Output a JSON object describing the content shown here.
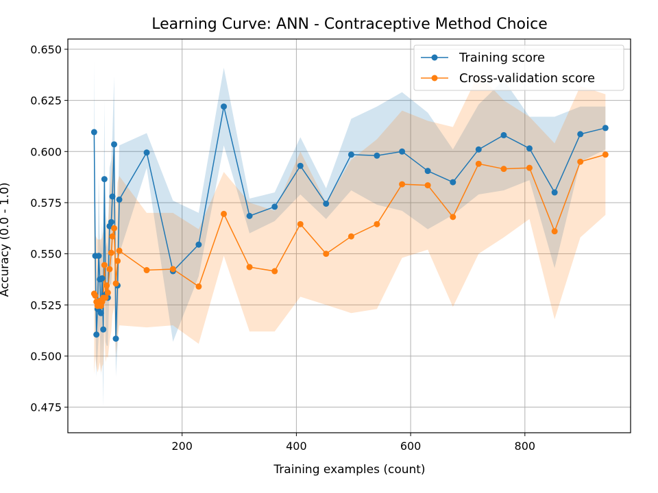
{
  "chart_data": {
    "type": "line",
    "title": "Learning Curve: ANN - Contraceptive Method Choice",
    "xlabel": "Training examples (count)",
    "ylabel": "Accuracy (0.0 - 1.0)",
    "xlim": [
      0,
      985
    ],
    "ylim": [
      0.4625,
      0.655
    ],
    "xticks": [
      200,
      400,
      600,
      800
    ],
    "yticks": [
      0.475,
      0.5,
      0.525,
      0.55,
      0.575,
      0.6,
      0.625,
      0.65
    ],
    "grid": true,
    "legend_position": "top-right",
    "series": [
      {
        "name": "Training score",
        "color": "#1f77b4",
        "points": [
          [
            46,
            0.6095
          ],
          [
            48,
            0.549
          ],
          [
            50,
            0.5105
          ],
          [
            52,
            0.523
          ],
          [
            54,
            0.549
          ],
          [
            56,
            0.5375
          ],
          [
            58,
            0.521
          ],
          [
            60,
            0.538
          ],
          [
            62,
            0.513
          ],
          [
            64,
            0.5865
          ],
          [
            66,
            0.53
          ],
          [
            68,
            0.5305
          ],
          [
            70,
            0.5285
          ],
          [
            73,
            0.5635
          ],
          [
            76,
            0.5655
          ],
          [
            78,
            0.578
          ],
          [
            81,
            0.6035
          ],
          [
            84,
            0.5085
          ],
          [
            87,
            0.5345
          ],
          [
            90,
            0.5765
          ],
          [
            138,
            0.5995
          ],
          [
            184,
            0.5415
          ],
          [
            229,
            0.5545
          ],
          [
            273,
            0.622
          ],
          [
            318,
            0.5685
          ],
          [
            362,
            0.573
          ],
          [
            407,
            0.593
          ],
          [
            452,
            0.5745
          ],
          [
            496,
            0.5985
          ],
          [
            541,
            0.598
          ],
          [
            585,
            0.6
          ],
          [
            630,
            0.5905
          ],
          [
            674,
            0.585
          ],
          [
            719,
            0.601
          ],
          [
            763,
            0.608
          ],
          [
            808,
            0.6015
          ],
          [
            852,
            0.58
          ],
          [
            897,
            0.6085
          ],
          [
            941,
            0.6115
          ]
        ],
        "band": [
          [
            46,
            0.575,
            0.644
          ],
          [
            48,
            0.52,
            0.578
          ],
          [
            50,
            0.49,
            0.531
          ],
          [
            52,
            0.5,
            0.546
          ],
          [
            54,
            0.51,
            0.588
          ],
          [
            56,
            0.515,
            0.56
          ],
          [
            58,
            0.49,
            0.552
          ],
          [
            60,
            0.51,
            0.566
          ],
          [
            62,
            0.475,
            0.551
          ],
          [
            64,
            0.548,
            0.625
          ],
          [
            66,
            0.507,
            0.553
          ],
          [
            68,
            0.505,
            0.556
          ],
          [
            70,
            0.505,
            0.552
          ],
          [
            73,
            0.535,
            0.592
          ],
          [
            76,
            0.535,
            0.596
          ],
          [
            78,
            0.548,
            0.608
          ],
          [
            81,
            0.57,
            0.637
          ],
          [
            84,
            0.49,
            0.527
          ],
          [
            87,
            0.505,
            0.564
          ],
          [
            90,
            0.55,
            0.603
          ],
          [
            138,
            0.592,
            0.609
          ],
          [
            184,
            0.507,
            0.576
          ],
          [
            229,
            0.539,
            0.57
          ],
          [
            273,
            0.603,
            0.641
          ],
          [
            318,
            0.56,
            0.577
          ],
          [
            362,
            0.566,
            0.58
          ],
          [
            407,
            0.579,
            0.607
          ],
          [
            452,
            0.567,
            0.582
          ],
          [
            496,
            0.581,
            0.616
          ],
          [
            541,
            0.574,
            0.622
          ],
          [
            585,
            0.571,
            0.629
          ],
          [
            630,
            0.562,
            0.619
          ],
          [
            674,
            0.569,
            0.601
          ],
          [
            719,
            0.579,
            0.623
          ],
          [
            763,
            0.581,
            0.635
          ],
          [
            808,
            0.586,
            0.617
          ],
          [
            852,
            0.543,
            0.617
          ],
          [
            897,
            0.595,
            0.622
          ],
          [
            941,
            0.601,
            0.622
          ]
        ]
      },
      {
        "name": "Cross-validation score",
        "color": "#ff7f0e",
        "points": [
          [
            46,
            0.5305
          ],
          [
            48,
            0.5295
          ],
          [
            50,
            0.5265
          ],
          [
            52,
            0.5245
          ],
          [
            54,
            0.5255
          ],
          [
            56,
            0.527
          ],
          [
            58,
            0.5245
          ],
          [
            60,
            0.5265
          ],
          [
            62,
            0.5285
          ],
          [
            64,
            0.5445
          ],
          [
            66,
            0.5285
          ],
          [
            68,
            0.5345
          ],
          [
            70,
            0.531
          ],
          [
            73,
            0.5425
          ],
          [
            76,
            0.5505
          ],
          [
            78,
            0.5585
          ],
          [
            81,
            0.5625
          ],
          [
            84,
            0.5355
          ],
          [
            87,
            0.5465
          ],
          [
            90,
            0.5515
          ],
          [
            138,
            0.542
          ],
          [
            184,
            0.5425
          ],
          [
            229,
            0.534
          ],
          [
            273,
            0.5695
          ],
          [
            318,
            0.5435
          ],
          [
            362,
            0.5415
          ],
          [
            407,
            0.5645
          ],
          [
            452,
            0.55
          ],
          [
            496,
            0.5585
          ],
          [
            541,
            0.5645
          ],
          [
            585,
            0.584
          ],
          [
            630,
            0.5835
          ],
          [
            674,
            0.568
          ],
          [
            719,
            0.594
          ],
          [
            763,
            0.5915
          ],
          [
            808,
            0.592
          ],
          [
            852,
            0.561
          ],
          [
            897,
            0.595
          ],
          [
            941,
            0.5985
          ]
        ],
        "band": [
          [
            46,
            0.491,
            0.57
          ],
          [
            48,
            0.5,
            0.559
          ],
          [
            50,
            0.495,
            0.558
          ],
          [
            52,
            0.492,
            0.557
          ],
          [
            54,
            0.494,
            0.557
          ],
          [
            56,
            0.497,
            0.557
          ],
          [
            58,
            0.492,
            0.557
          ],
          [
            60,
            0.495,
            0.558
          ],
          [
            62,
            0.496,
            0.561
          ],
          [
            64,
            0.51,
            0.579
          ],
          [
            66,
            0.497,
            0.56
          ],
          [
            68,
            0.5,
            0.569
          ],
          [
            70,
            0.499,
            0.563
          ],
          [
            73,
            0.507,
            0.578
          ],
          [
            76,
            0.512,
            0.589
          ],
          [
            78,
            0.52,
            0.597
          ],
          [
            81,
            0.524,
            0.601
          ],
          [
            84,
            0.5,
            0.571
          ],
          [
            87,
            0.508,
            0.585
          ],
          [
            90,
            0.515,
            0.588
          ],
          [
            138,
            0.514,
            0.57
          ],
          [
            184,
            0.515,
            0.57
          ],
          [
            229,
            0.506,
            0.562
          ],
          [
            273,
            0.549,
            0.59
          ],
          [
            318,
            0.512,
            0.575
          ],
          [
            362,
            0.512,
            0.571
          ],
          [
            407,
            0.529,
            0.6
          ],
          [
            452,
            0.525,
            0.575
          ],
          [
            496,
            0.521,
            0.596
          ],
          [
            541,
            0.523,
            0.606
          ],
          [
            585,
            0.548,
            0.62
          ],
          [
            630,
            0.552,
            0.615
          ],
          [
            674,
            0.524,
            0.612
          ],
          [
            719,
            0.55,
            0.638
          ],
          [
            763,
            0.558,
            0.625
          ],
          [
            808,
            0.567,
            0.617
          ],
          [
            852,
            0.518,
            0.604
          ],
          [
            897,
            0.558,
            0.632
          ],
          [
            941,
            0.569,
            0.628
          ]
        ]
      }
    ]
  }
}
